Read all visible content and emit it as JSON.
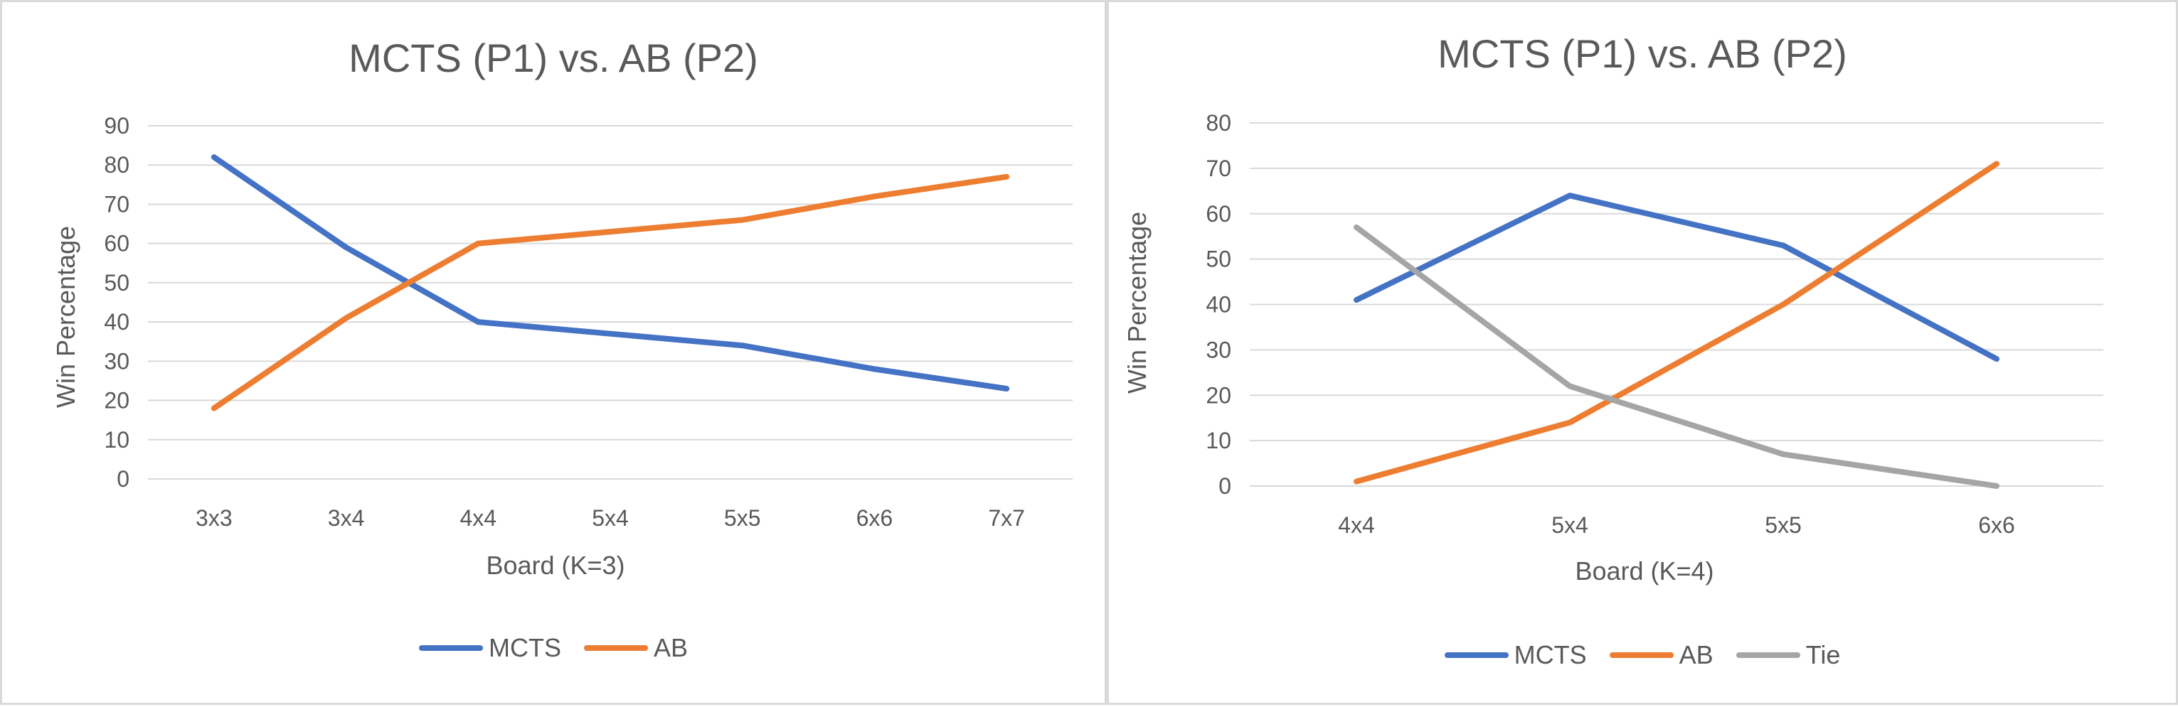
{
  "chart_data": [
    {
      "type": "line",
      "title": "MCTS (P1) vs. AB (P2)",
      "xlabel": "Board (K=3)",
      "ylabel": "Win Percentage",
      "categories": [
        "3x3",
        "3x4",
        "4x4",
        "5x4",
        "5x5",
        "6x6",
        "7x7"
      ],
      "ylim": [
        0,
        90
      ],
      "yticks": [
        0,
        10,
        20,
        30,
        40,
        50,
        60,
        70,
        80,
        90
      ],
      "grid": true,
      "legend_position": "bottom",
      "series": [
        {
          "name": "MCTS",
          "color": "#4472c4",
          "values": [
            82,
            59,
            40,
            37,
            34,
            28,
            23
          ]
        },
        {
          "name": "AB",
          "color": "#ed7d31",
          "values": [
            18,
            41,
            60,
            63,
            66,
            72,
            77
          ]
        }
      ]
    },
    {
      "type": "line",
      "title": "MCTS (P1) vs. AB (P2)",
      "xlabel": "Board (K=4)",
      "ylabel": "Win Percentage",
      "categories": [
        "4x4",
        "5x4",
        "5x5",
        "6x6"
      ],
      "ylim": [
        0,
        80
      ],
      "yticks": [
        0,
        10,
        20,
        30,
        40,
        50,
        60,
        70,
        80
      ],
      "grid": true,
      "legend_position": "bottom",
      "series": [
        {
          "name": "MCTS",
          "color": "#4472c4",
          "values": [
            41,
            64,
            53,
            28
          ]
        },
        {
          "name": "AB",
          "color": "#ed7d31",
          "values": [
            1,
            14,
            40,
            71
          ]
        },
        {
          "name": "Tie",
          "color": "#a5a5a5",
          "values": [
            57,
            22,
            7,
            0
          ]
        }
      ]
    }
  ]
}
